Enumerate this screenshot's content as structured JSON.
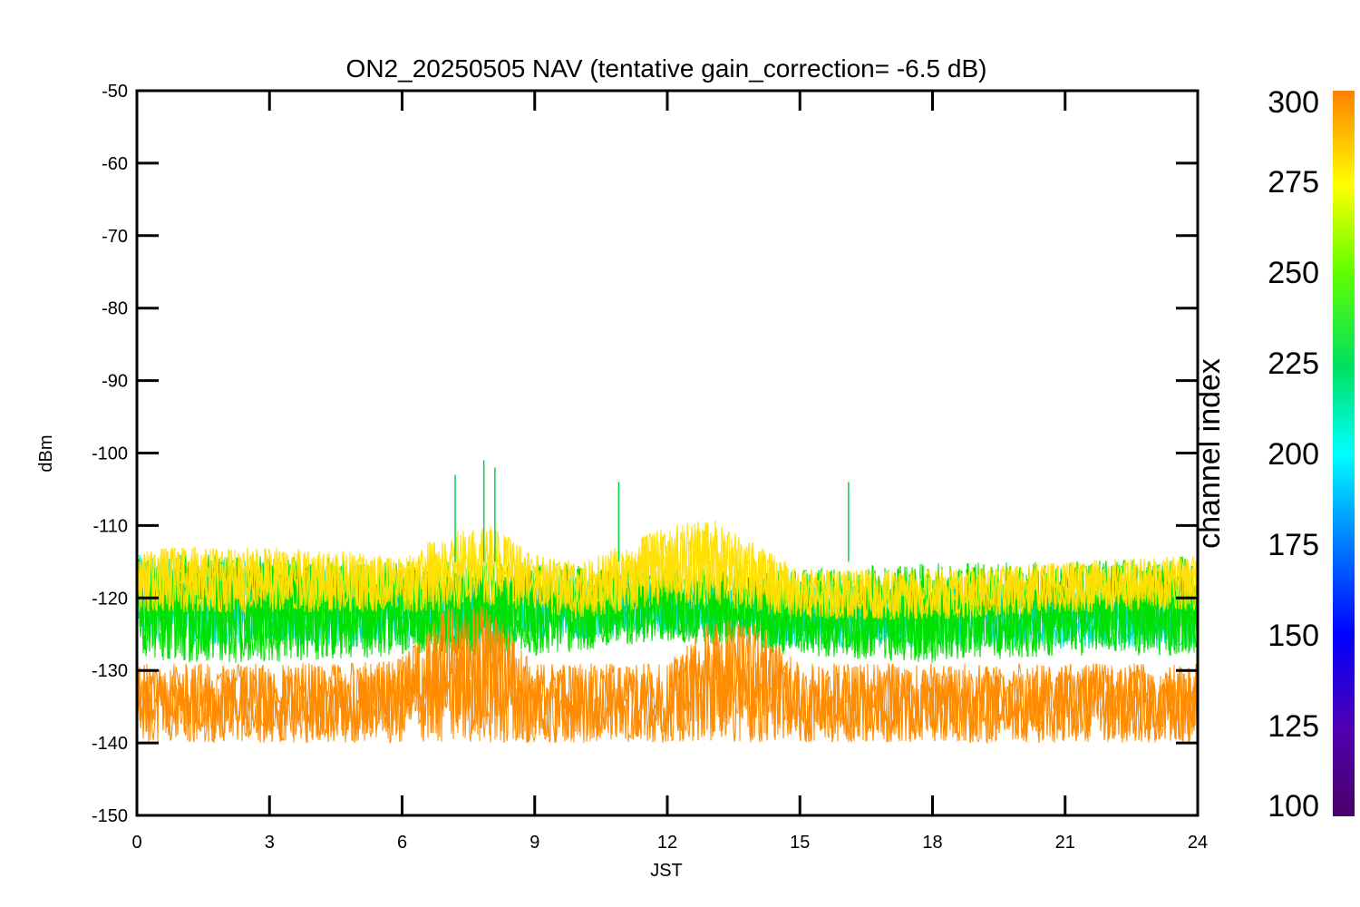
{
  "chart_data": {
    "type": "line",
    "title": "ON2_20250505 NAV (tentative gain_correction= -6.5 dB)",
    "xlabel": "JST",
    "ylabel": "dBm",
    "xlim": [
      0,
      24
    ],
    "ylim": [
      -150,
      -50
    ],
    "x_ticks": [
      "0",
      "3",
      "6",
      "9",
      "12",
      "15",
      "18",
      "21",
      "24"
    ],
    "y_ticks": [
      "-50",
      "-60",
      "-70",
      "-80",
      "-90",
      "-100",
      "-110",
      "-120",
      "-130",
      "-140",
      "-150"
    ],
    "colorbar": {
      "label": "channel index",
      "range": [
        100,
        300
      ],
      "ticks": [
        "300",
        "275",
        "250",
        "225",
        "200",
        "175",
        "150",
        "125",
        "100"
      ],
      "colormap": "rainbow (purple → blue → cyan → green → yellow → orange)"
    },
    "series": [
      {
        "group": "channels ~280 (orange)",
        "color": "#ff8c00",
        "x": [
          0,
          3,
          5,
          6,
          7,
          8,
          9,
          12,
          13,
          14,
          15,
          18,
          21,
          24
        ],
        "y_median": [
          -134,
          -134,
          -133,
          -131,
          -126,
          -125,
          -133,
          -134,
          -128,
          -128,
          -133,
          -134,
          -134,
          -134
        ],
        "y_low": [
          -140,
          -140,
          -140,
          -140,
          -140,
          -140,
          -140,
          -140,
          -140,
          -140,
          -140,
          -140,
          -140,
          -140
        ],
        "y_high": [
          -129,
          -129,
          -129,
          -128,
          -121,
          -121,
          -129,
          -129,
          -123,
          -123,
          -129,
          -129,
          -129,
          -129
        ]
      },
      {
        "group": "channels ~265 (yellow)",
        "color": "#ffe000",
        "x": [
          0,
          3,
          6,
          7,
          8,
          9,
          10,
          12,
          13,
          15,
          18,
          21,
          24
        ],
        "y_median": [
          -118,
          -117,
          -118,
          -116,
          -114,
          -118,
          -119,
          -115,
          -115,
          -120,
          -120,
          -119,
          -118
        ],
        "y_low": [
          -122,
          -122,
          -122,
          -122,
          -121,
          -122,
          -123,
          -121,
          -121,
          -123,
          -123,
          -122,
          -122
        ],
        "y_high": [
          -113,
          -113,
          -114,
          -111,
          -110,
          -114,
          -115,
          -110,
          -109,
          -116,
          -116,
          -115,
          -114
        ]
      },
      {
        "group": "channels ~230 (green)",
        "color": "#00e000",
        "x": [
          0,
          3,
          6,
          9,
          12,
          15,
          18,
          21,
          24
        ],
        "y_median": [
          -125,
          -125,
          -124,
          -123,
          -120,
          -123,
          -125,
          -123,
          -122
        ],
        "y_low": [
          -129,
          -129,
          -128,
          -128,
          -126,
          -128,
          -129,
          -128,
          -128
        ],
        "y_high": [
          -114,
          -114,
          -115,
          -115,
          -116,
          -116,
          -115,
          -115,
          -114
        ]
      },
      {
        "group": "channels ~190 (cyan)",
        "color": "#00e0c0",
        "x": [
          0,
          3,
          6,
          9,
          12,
          15,
          18,
          21,
          24
        ],
        "y_median": [
          -122,
          -123,
          -124,
          -122,
          -121,
          -123,
          -124,
          -124,
          -124
        ],
        "y_low": [
          -126,
          -127,
          -127,
          -126,
          -125,
          -127,
          -127,
          -127,
          -127
        ],
        "y_high": [
          -114,
          -115,
          -116,
          -117,
          -117,
          -118,
          -118,
          -118,
          -118
        ]
      }
    ],
    "annotations": [
      {
        "x": 7.2,
        "y": -103,
        "note": "spike"
      },
      {
        "x": 7.85,
        "y": -101,
        "note": "spike"
      },
      {
        "x": 8.1,
        "y": -102,
        "note": "spike"
      },
      {
        "x": 10.9,
        "y": -104,
        "note": "spike"
      },
      {
        "x": 16.1,
        "y": -104,
        "note": "spike"
      }
    ]
  }
}
